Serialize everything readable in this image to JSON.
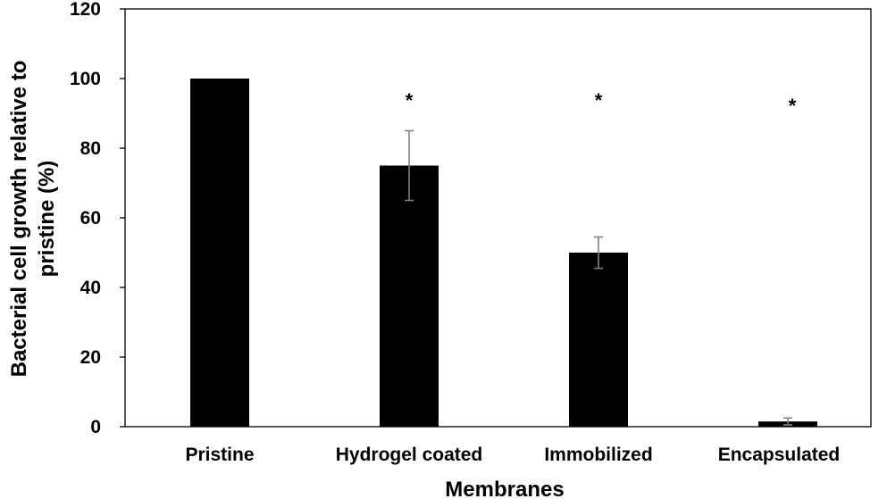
{
  "chart_data": {
    "type": "bar",
    "title": "",
    "xlabel": "Membranes",
    "ylabel": "Bacterial cell growth relative to pristine (%)",
    "ylabel_lines": [
      "Bacterial cell growth relative to",
      "pristine (%)"
    ],
    "categories": [
      "Pristine",
      "Hydrogel coated",
      "Immobilized",
      "Encapsulated"
    ],
    "values": [
      100,
      75,
      50,
      1.5
    ],
    "errors": [
      0,
      10,
      4.5,
      1
    ],
    "annotations": [
      "",
      "*",
      "*",
      "*"
    ],
    "ylim": [
      0,
      120
    ],
    "yticks": [
      0,
      20,
      40,
      60,
      80,
      100,
      120
    ],
    "ytick_labels": [
      "0",
      "20",
      "40",
      "60",
      "80",
      "100",
      "120"
    ],
    "grid": false,
    "legend": "none",
    "colors": {
      "bar": "#000000",
      "error_bar": "#808080",
      "axis": "#000000"
    }
  }
}
